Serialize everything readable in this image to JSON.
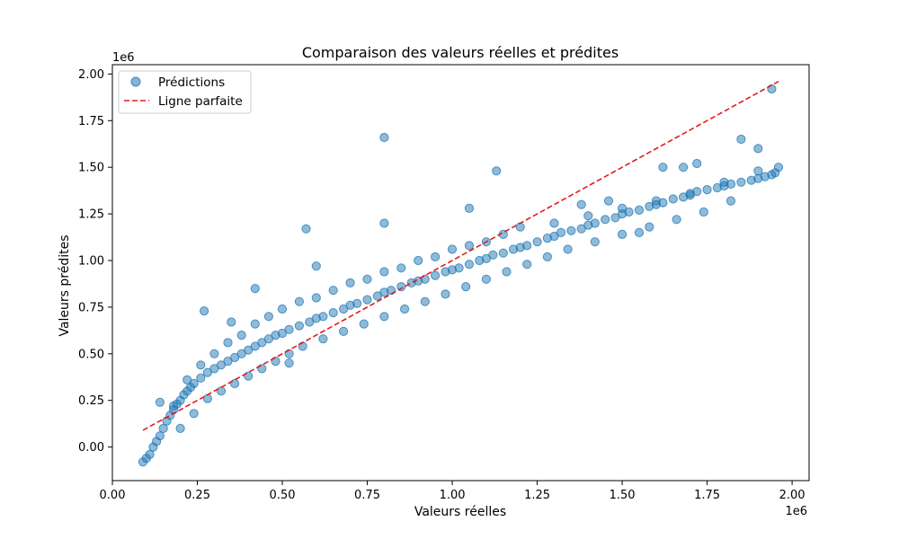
{
  "chart_data": {
    "type": "scatter",
    "title": "Comparaison des valeurs réelles et prédites",
    "xlabel": "Valeurs réelles",
    "ylabel": "Valeurs prédites",
    "x_offset_label": "1e6",
    "y_offset_label": "1e6",
    "xlim": [
      0.0,
      2.05
    ],
    "ylim": [
      -0.18,
      2.05
    ],
    "x_ticks": [
      0.0,
      0.25,
      0.5,
      0.75,
      1.0,
      1.25,
      1.5,
      1.75,
      2.0
    ],
    "x_tick_labels": [
      "0.00",
      "0.25",
      "0.50",
      "0.75",
      "1.00",
      "1.25",
      "1.50",
      "1.75",
      "2.00"
    ],
    "y_ticks": [
      0.0,
      0.25,
      0.5,
      0.75,
      1.0,
      1.25,
      1.5,
      1.75,
      2.0
    ],
    "y_tick_labels": [
      "0.00",
      "0.25",
      "0.50",
      "0.75",
      "1.00",
      "1.25",
      "1.50",
      "1.75",
      "2.00"
    ],
    "grid": false,
    "legend_position": "top-left",
    "series": [
      {
        "name": "Prédictions",
        "kind": "scatter",
        "color": "#1f77b4",
        "x": [
          0.09,
          0.1,
          0.11,
          0.12,
          0.13,
          0.14,
          0.15,
          0.16,
          0.17,
          0.18,
          0.19,
          0.2,
          0.21,
          0.22,
          0.23,
          0.24,
          0.26,
          0.28,
          0.3,
          0.32,
          0.34,
          0.36,
          0.38,
          0.4,
          0.42,
          0.44,
          0.46,
          0.48,
          0.5,
          0.52,
          0.55,
          0.58,
          0.6,
          0.62,
          0.65,
          0.68,
          0.7,
          0.72,
          0.75,
          0.78,
          0.8,
          0.82,
          0.85,
          0.88,
          0.9,
          0.92,
          0.95,
          0.98,
          1.0,
          1.02,
          1.05,
          1.08,
          1.1,
          1.12,
          1.15,
          1.18,
          1.2,
          1.22,
          1.25,
          1.28,
          1.3,
          1.32,
          1.35,
          1.38,
          1.4,
          1.42,
          1.45,
          1.48,
          1.5,
          1.52,
          1.55,
          1.58,
          1.6,
          1.62,
          1.65,
          1.68,
          1.7,
          1.72,
          1.75,
          1.78,
          1.8,
          1.82,
          1.85,
          1.88,
          1.9,
          1.92,
          1.94,
          1.95,
          0.14,
          0.18,
          0.22,
          0.26,
          0.3,
          0.34,
          0.38,
          0.42,
          0.46,
          0.5,
          0.55,
          0.6,
          0.65,
          0.7,
          0.75,
          0.8,
          0.85,
          0.9,
          0.95,
          1.0,
          1.05,
          1.1,
          1.15,
          1.2,
          1.3,
          1.4,
          1.5,
          1.6,
          1.7,
          1.8,
          1.9,
          0.2,
          0.24,
          0.28,
          0.32,
          0.36,
          0.4,
          0.44,
          0.48,
          0.52,
          0.56,
          0.62,
          0.68,
          0.74,
          0.8,
          0.86,
          0.92,
          0.98,
          1.04,
          1.1,
          1.16,
          1.22,
          1.28,
          1.34,
          1.42,
          1.5,
          1.58,
          1.66,
          1.74,
          1.82,
          0.8,
          1.13,
          0.57,
          0.27,
          0.8,
          1.94,
          1.96,
          1.05,
          1.38,
          1.46,
          1.55,
          1.62,
          1.68,
          1.72,
          1.85,
          1.9,
          0.52,
          0.42,
          0.6,
          0.35
        ],
        "y": [
          -0.08,
          -0.06,
          -0.04,
          0.0,
          0.03,
          0.06,
          0.1,
          0.14,
          0.17,
          0.2,
          0.23,
          0.25,
          0.28,
          0.3,
          0.32,
          0.34,
          0.37,
          0.4,
          0.42,
          0.44,
          0.46,
          0.48,
          0.5,
          0.52,
          0.54,
          0.56,
          0.58,
          0.6,
          0.61,
          0.63,
          0.65,
          0.67,
          0.69,
          0.7,
          0.72,
          0.74,
          0.76,
          0.77,
          0.79,
          0.81,
          0.83,
          0.84,
          0.86,
          0.88,
          0.89,
          0.9,
          0.92,
          0.94,
          0.95,
          0.96,
          0.98,
          1.0,
          1.01,
          1.03,
          1.04,
          1.06,
          1.07,
          1.08,
          1.1,
          1.12,
          1.13,
          1.15,
          1.16,
          1.17,
          1.19,
          1.2,
          1.22,
          1.23,
          1.25,
          1.26,
          1.27,
          1.29,
          1.3,
          1.31,
          1.33,
          1.34,
          1.35,
          1.37,
          1.38,
          1.39,
          1.4,
          1.41,
          1.42,
          1.43,
          1.44,
          1.45,
          1.46,
          1.47,
          0.24,
          0.22,
          0.36,
          0.44,
          0.5,
          0.56,
          0.6,
          0.66,
          0.7,
          0.74,
          0.78,
          0.8,
          0.84,
          0.88,
          0.9,
          0.94,
          0.96,
          1.0,
          1.02,
          1.06,
          1.08,
          1.1,
          1.14,
          1.18,
          1.2,
          1.24,
          1.28,
          1.32,
          1.36,
          1.42,
          1.48,
          0.1,
          0.18,
          0.26,
          0.3,
          0.34,
          0.38,
          0.42,
          0.46,
          0.5,
          0.54,
          0.58,
          0.62,
          0.66,
          0.7,
          0.74,
          0.78,
          0.82,
          0.86,
          0.9,
          0.94,
          0.98,
          1.02,
          1.06,
          1.1,
          1.14,
          1.18,
          1.22,
          1.26,
          1.32,
          1.66,
          1.48,
          1.17,
          0.73,
          1.2,
          1.92,
          1.5,
          1.28,
          1.3,
          1.32,
          1.15,
          1.5,
          1.5,
          1.52,
          1.65,
          1.6,
          0.45,
          0.85,
          0.97,
          0.67
        ]
      },
      {
        "name": "Ligne parfaite",
        "kind": "line",
        "style": "dashed",
        "color": "#e41a1c",
        "x": [
          0.09,
          1.96
        ],
        "y": [
          0.09,
          1.96
        ]
      }
    ]
  }
}
